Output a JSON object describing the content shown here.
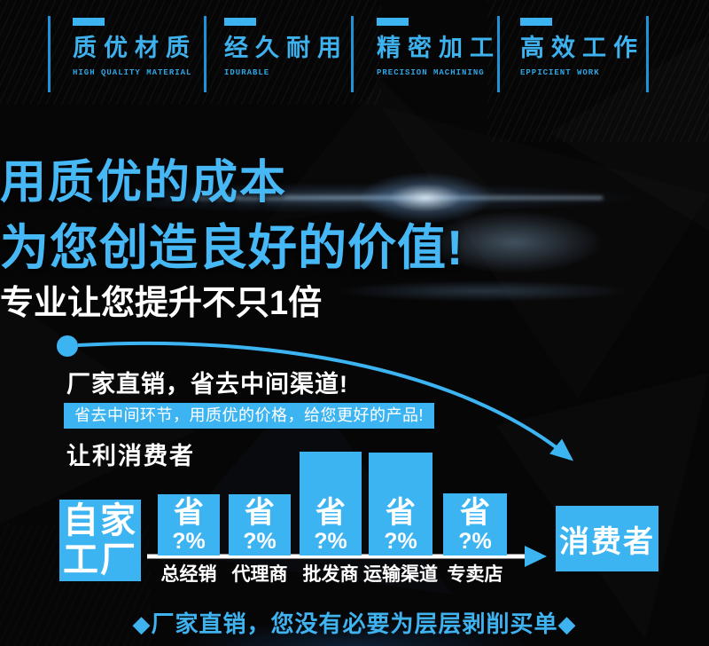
{
  "accent_color": "#3cb4f2",
  "background_color": "#060607",
  "badges": [
    {
      "title": "质优材质",
      "subtitle": "HIGH QUALITY MATERIAL"
    },
    {
      "title": "经久耐用",
      "subtitle": "IDURABLE"
    },
    {
      "title": "精密加工",
      "subtitle": "PRECISION MACHINING"
    },
    {
      "title": "高效工作",
      "subtitle": "EPPICIENT WORK"
    }
  ],
  "hero": {
    "title_line1": "用质优的成本",
    "title_line2": "为您创造良好的价值!",
    "subtitle": "专业让您提升不只1倍"
  },
  "direct_sales": {
    "heading": "厂家直销，省去中间渠道!",
    "highlight": "省去中间环节，用质优的价格，给您更好的产品!",
    "sub_heading": "让利消费者"
  },
  "chart_data": {
    "type": "bar",
    "title": "让利消费者",
    "source_label": "自家工厂",
    "source_label_lines": [
      "自家",
      "工厂"
    ],
    "target_label": "消费者",
    "categories": [
      "总经销",
      "代理商",
      "批发商",
      "运输渠道",
      "专卖店"
    ],
    "bar_value_top": "省",
    "bar_value_bottom": "?%",
    "bars_annotation": "每个中间环节均标注 省 ?%",
    "relative_heights": [
      69,
      69,
      117,
      116,
      70
    ],
    "baseline_arrow": "白色横线由自家工厂指向消费者",
    "legend_position": "none",
    "grid": false
  },
  "footer": {
    "text": "◆厂家直销，您没有必要为层层剥削买单◆"
  }
}
